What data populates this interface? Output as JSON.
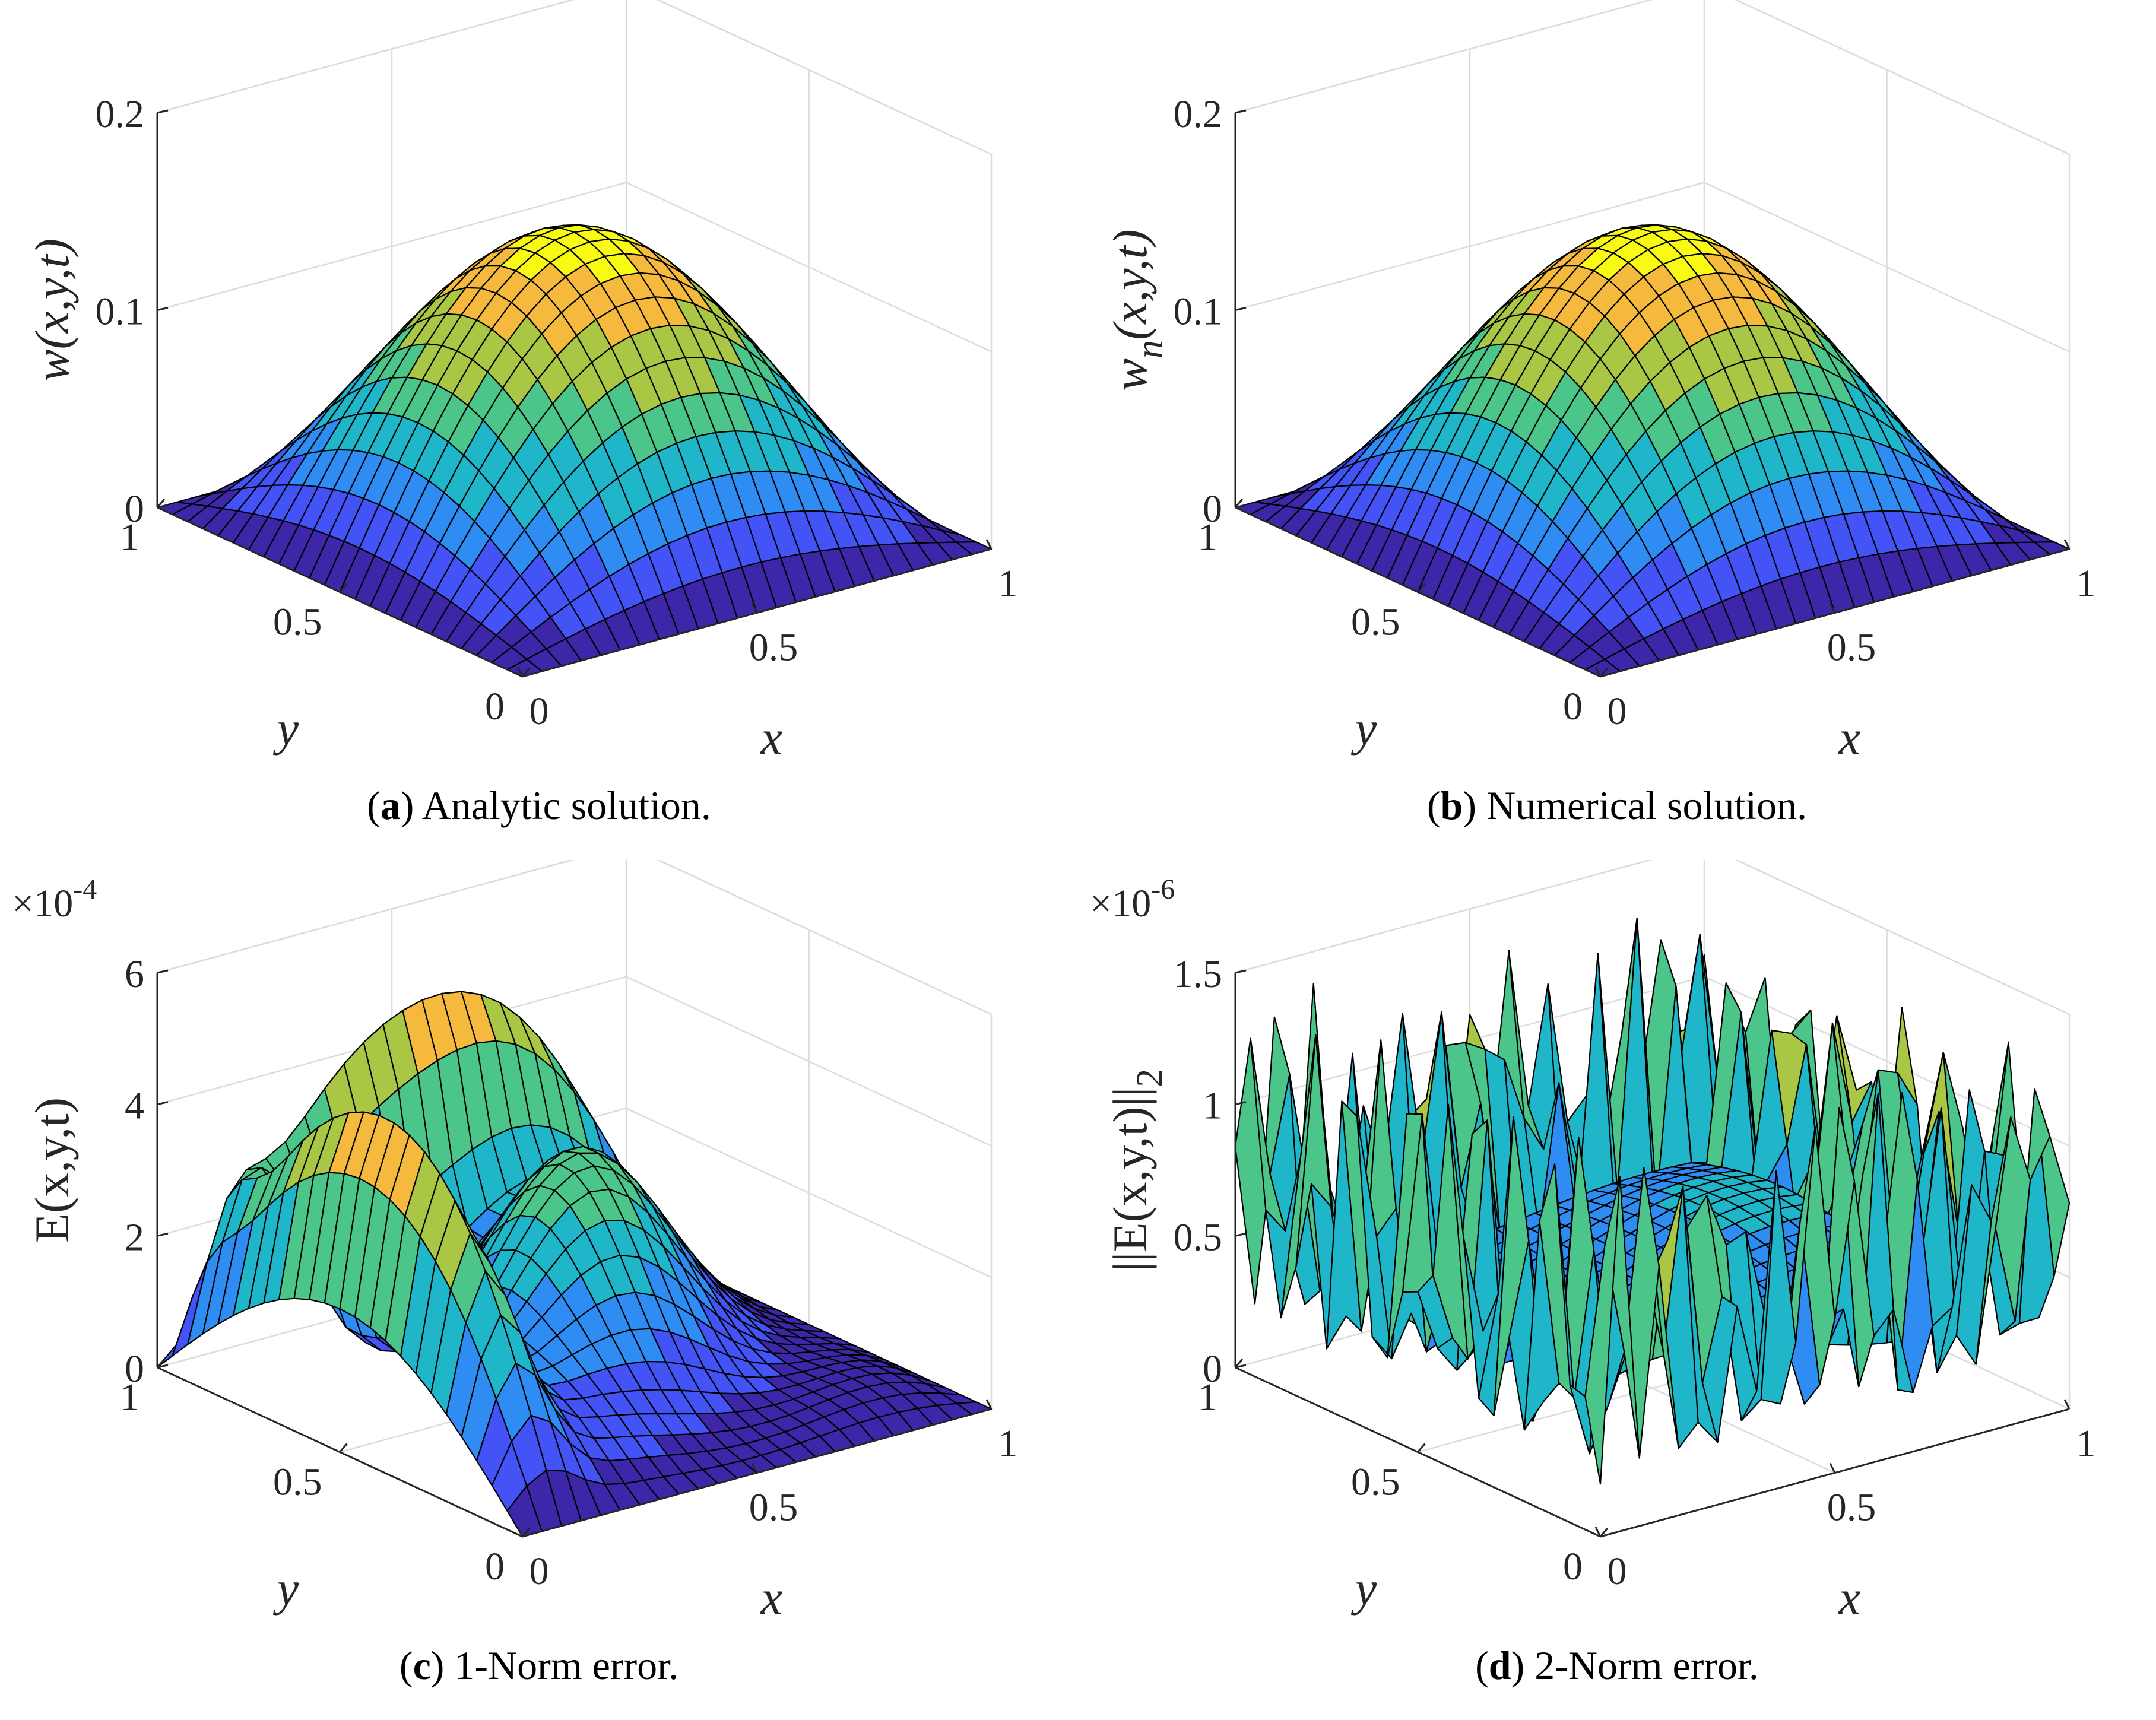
{
  "figure": {
    "colors": {
      "axis": "#262626",
      "grid": "#dcdcdc",
      "edge": "#000000"
    },
    "colormap": [
      "#3e26a8",
      "#4353f5",
      "#2f8cf3",
      "#1fb6c9",
      "#4cc58a",
      "#a9c744",
      "#f5ba3d",
      "#f9fa14"
    ]
  },
  "chart_data": [
    {
      "id": "a",
      "type": "surface",
      "caption_tag": "a",
      "caption_text": ") Analytic solution.",
      "zlabel": "w(x,y,t)",
      "zlabel_sub": "",
      "xlabel": "x",
      "ylabel": "y",
      "xlim": [
        0,
        1
      ],
      "ylim": [
        0,
        1
      ],
      "zlim": [
        0,
        0.2
      ],
      "xticks": [
        "0",
        "0.5",
        "1"
      ],
      "yticks": [
        "0",
        "0.5",
        "1"
      ],
      "zticks": [
        "0",
        "0.1",
        "0.2"
      ],
      "exponent_base": "",
      "exponent": "",
      "grid_points": 25,
      "surface": "peak = 0.15 at (0.5,0.5), sin(pi x) sin(pi y) shape"
    },
    {
      "id": "b",
      "type": "surface",
      "caption_tag": "b",
      "caption_text": ") Numerical solution.",
      "zlabel": "w",
      "zlabel_sub": "n",
      "zlabel_rest": "(x,y,t)",
      "xlabel": "x",
      "ylabel": "y",
      "xlim": [
        0,
        1
      ],
      "ylim": [
        0,
        1
      ],
      "zlim": [
        0,
        0.2
      ],
      "xticks": [
        "0",
        "0.5",
        "1"
      ],
      "yticks": [
        "0",
        "0.5",
        "1"
      ],
      "zticks": [
        "0",
        "0.1",
        "0.2"
      ],
      "exponent_base": "",
      "exponent": "",
      "grid_points": 25,
      "surface": "peak = 0.15 at (0.5,0.5), sin(pi x) sin(pi y) shape"
    },
    {
      "id": "c",
      "type": "surface",
      "caption_tag": "c",
      "caption_text": ") 1-Norm error.",
      "zlabel": "E(x,y,t)",
      "zlabel_sub": "",
      "xlabel": "x",
      "ylabel": "y",
      "xlim": [
        0,
        1
      ],
      "ylim": [
        0,
        1
      ],
      "zlim": [
        0,
        6
      ],
      "xticks": [
        "0",
        "0.5",
        "1"
      ],
      "yticks": [
        "0",
        "0.5",
        "1"
      ],
      "zticks": [
        "0",
        "2",
        "4",
        "6"
      ],
      "exponent_base": "×10",
      "exponent": "-4",
      "grid_points": 25,
      "surface": "error up to ~5e-4, ridges along x=0.1 and y=0.9"
    },
    {
      "id": "d",
      "type": "surface",
      "caption_tag": "d",
      "caption_text": ") 2-Norm error.",
      "zlabel": "||E(x,y,t)||",
      "zlabel_sub": "2",
      "xlabel": "x",
      "ylabel": "y",
      "xlim": [
        0,
        1
      ],
      "ylim": [
        0,
        1
      ],
      "zlim": [
        0,
        1.5
      ],
      "xticks": [
        "0",
        "0.5",
        "1"
      ],
      "yticks": [
        "0",
        "0.5",
        "1"
      ],
      "zticks": [
        "0",
        "0.5",
        "1",
        "1.5"
      ],
      "exponent_base": "×10",
      "exponent": "-6",
      "grid_points": 25,
      "surface": "error up to ~1.4e-6, spikes along boundaries, flat ~0.4e-6 interior"
    }
  ]
}
